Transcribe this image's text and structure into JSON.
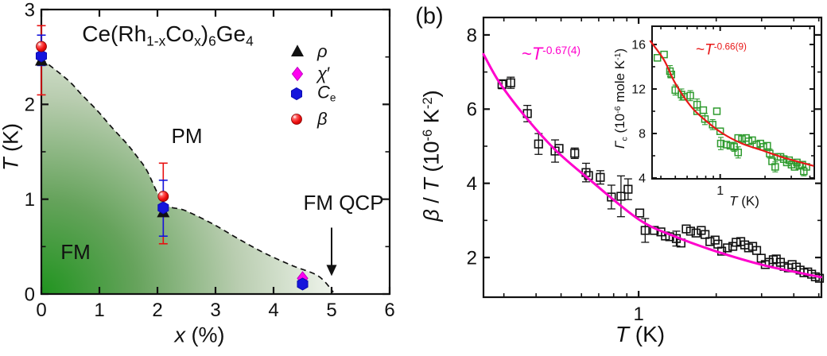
{
  "colors": {
    "black": "#111111",
    "blue": "#1515DC",
    "blue_edge": "#0B0BB0",
    "red": "#E81010",
    "magenta": "#FF00F0",
    "magenta_edge": "#C000C0",
    "fit_magenta": "#FF00CC",
    "fit_red": "#E81818",
    "green": "#2E9B2E",
    "green_corner": "#20941F"
  },
  "left_panel": {
    "title": [
      {
        "t": "Ce(Rh"
      },
      {
        "sub": "1-x"
      },
      {
        "t": "Co"
      },
      {
        "sub": "x"
      },
      {
        "t": ")"
      },
      {
        "sub": "6"
      },
      {
        "t": "Ge"
      },
      {
        "sub": "4"
      }
    ],
    "xlabel": [
      {
        "t": "x",
        "i": true
      },
      {
        "t": " (%)"
      }
    ],
    "ylabel": [
      {
        "t": "T",
        "i": true
      },
      {
        "t": " (K)"
      }
    ],
    "region_fm": "FM",
    "region_pm": "PM",
    "qcp_label": "FM QCP",
    "legend": [
      {
        "marker": "triangle",
        "label": [
          {
            "t": "ρ",
            "i": true
          }
        ]
      },
      {
        "marker": "diamond",
        "label": [
          {
            "t": "χ",
            "i": true
          },
          {
            "t": "′"
          }
        ]
      },
      {
        "marker": "hexagon",
        "label": [
          {
            "t": "C",
            "i": true
          },
          {
            "sub": "e"
          }
        ]
      },
      {
        "marker": "ball",
        "label": [
          {
            "t": "β",
            "i": true
          }
        ]
      }
    ]
  },
  "right_panel": {
    "panel_tag": "(b)",
    "xlabel": [
      {
        "t": "T",
        "i": true
      },
      {
        "t": " (K)"
      }
    ],
    "ylabel": [
      {
        "t": "β",
        "i": true
      },
      {
        "t": " / "
      },
      {
        "t": "T",
        "i": true
      },
      {
        "t": " (10"
      },
      {
        "sup": "-6"
      },
      {
        "t": " K"
      },
      {
        "sup": "-2"
      },
      {
        "t": ")"
      }
    ],
    "fit_label": [
      {
        "t": "~"
      },
      {
        "t": "T",
        "i": true
      },
      {
        "sup": "-0.67(4)"
      }
    ],
    "inset": {
      "xlabel": [
        {
          "t": "T",
          "i": true
        },
        {
          "t": " (K)"
        }
      ],
      "ylabel": [
        {
          "t": "Γ",
          "i": true
        },
        {
          "sub": "c"
        },
        {
          "t": " (10"
        },
        {
          "sup": "-6"
        },
        {
          "t": " mole K"
        },
        {
          "sup": "-1"
        },
        {
          "t": ")"
        }
      ],
      "fit_label": [
        {
          "t": "~"
        },
        {
          "t": "T",
          "i": true
        },
        {
          "sup": "-0.66(9)"
        }
      ]
    }
  },
  "chart_data": [
    {
      "type": "scatter",
      "name": "phase-diagram",
      "title": "Ce(Rh1-xCox)6Ge4",
      "xlabel": "x (%)",
      "ylabel": "T (K)",
      "xlim": [
        0,
        6
      ],
      "ylim": [
        0,
        3
      ],
      "xscale": "linear",
      "yscale": "linear",
      "ticks": {
        "x_major": [
          0,
          1,
          2,
          3,
          4,
          5,
          6
        ],
        "x_minor": [],
        "y_major": [
          0,
          1,
          2,
          3
        ],
        "y_minor": [
          0.5,
          1.5,
          2.5
        ]
      },
      "boundary_dashed": [
        [
          0,
          2.48
        ],
        [
          0.45,
          2.26
        ],
        [
          0.7,
          2.1
        ],
        [
          0.97,
          1.93
        ],
        [
          1.21,
          1.76
        ],
        [
          1.48,
          1.58
        ],
        [
          1.66,
          1.44
        ],
        [
          1.82,
          1.3
        ],
        [
          2.11,
          0.96
        ],
        [
          2.48,
          0.88
        ],
        [
          2.95,
          0.74
        ],
        [
          3.4,
          0.58
        ],
        [
          3.85,
          0.43
        ],
        [
          4.32,
          0.3
        ],
        [
          4.77,
          0.19
        ],
        [
          5.03,
          0.02
        ]
      ],
      "qcp_arrow": {
        "x": 5,
        "from_T": 0.7,
        "to_T": 0.19
      },
      "points_format": [
        "x_percent",
        "T_K",
        "err_low",
        "err_high"
      ],
      "series": [
        {
          "name": "rho",
          "marker": "triangle",
          "points": [
            [
              0,
              2.46,
              null,
              null
            ],
            [
              2.1,
              0.86,
              null,
              null
            ]
          ]
        },
        {
          "name": "Ce",
          "marker": "hexagon",
          "points": [
            [
              0,
              2.51,
              2.41,
              2.73
            ],
            [
              2.1,
              0.91,
              0.61,
              1.2
            ],
            [
              4.5,
              0.105,
              null,
              null
            ]
          ]
        },
        {
          "name": "chi",
          "marker": "diamond",
          "points": [
            [
              4.5,
              0.165,
              null,
              null
            ]
          ]
        },
        {
          "name": "beta",
          "marker": "ball",
          "points": [
            [
              0,
              2.61,
              2.1,
              2.83
            ],
            [
              2.1,
              1.03,
              0.53,
              1.38
            ]
          ]
        }
      ],
      "err_draw": [
        3,
        1
      ],
      "marker_draw": [
        0,
        2,
        1,
        3
      ]
    },
    {
      "type": "scatter",
      "name": "beta-over-T-vs-T",
      "xlabel": "T (K)",
      "ylabel": "beta/T (10^-6 K^-2)",
      "xscale": "log",
      "yscale": "linear",
      "xlim": [
        0.25,
        5.12
      ],
      "ylim": [
        0.93,
        8.47
      ],
      "ticks": {
        "x_major": [
          1
        ],
        "x_minor": [
          0.3,
          0.4,
          0.5,
          0.6,
          0.7,
          0.8,
          0.9,
          2,
          3,
          4,
          5
        ],
        "y_major": [
          2,
          4,
          6,
          8
        ],
        "y_minor": [
          3,
          5,
          7
        ]
      },
      "fit": "~T^-0.67(4)",
      "fit_curve": [
        [
          0.25,
          7.48
        ],
        [
          0.29,
          6.69
        ],
        [
          0.37,
          5.73
        ],
        [
          0.48,
          4.87
        ],
        [
          0.64,
          4.12
        ],
        [
          1.0,
          3.03
        ],
        [
          1.39,
          2.56
        ],
        [
          2.03,
          2.15
        ],
        [
          3.06,
          1.79
        ],
        [
          4.12,
          1.6
        ],
        [
          5.1,
          1.47
        ]
      ],
      "points_format": [
        "T_K",
        "beta_over_T",
        "err"
      ],
      "points": [
        [
          0.295,
          6.67,
          0.12
        ],
        [
          0.319,
          6.71,
          0.15
        ],
        [
          0.37,
          5.88,
          0.22
        ],
        [
          0.409,
          5.06,
          0.28
        ],
        [
          0.474,
          4.87,
          0.3
        ],
        [
          0.491,
          4.94,
          0
        ],
        [
          0.565,
          4.81,
          0.14
        ],
        [
          0.625,
          4.29,
          0.25
        ],
        [
          0.639,
          4.21,
          0
        ],
        [
          0.71,
          4.16,
          0.18
        ],
        [
          0.784,
          3.63,
          0.32
        ],
        [
          0.854,
          3.65,
          0.55
        ],
        [
          0.91,
          3.84,
          0.28
        ],
        [
          1.01,
          3.2,
          0
        ],
        [
          1.06,
          2.73,
          0.32
        ],
        [
          1.15,
          2.73,
          0
        ],
        [
          1.22,
          2.69,
          0
        ],
        [
          1.27,
          2.58,
          0
        ],
        [
          1.32,
          2.56,
          0
        ],
        [
          1.4,
          2.51,
          0.2
        ],
        [
          1.46,
          2.39,
          0
        ],
        [
          1.53,
          2.77,
          0
        ],
        [
          1.59,
          2.71,
          0
        ],
        [
          1.67,
          2.66,
          0
        ],
        [
          1.75,
          2.73,
          0
        ],
        [
          1.81,
          2.62,
          0
        ],
        [
          1.89,
          2.43,
          0
        ],
        [
          1.98,
          2.47,
          0
        ],
        [
          2.03,
          2.36,
          0
        ],
        [
          2.1,
          2.17,
          0
        ],
        [
          2.21,
          2.26,
          0
        ],
        [
          2.32,
          2.3,
          0
        ],
        [
          2.39,
          2.41,
          0
        ],
        [
          2.49,
          2.43,
          0
        ],
        [
          2.58,
          2.34,
          0
        ],
        [
          2.67,
          2.26,
          0
        ],
        [
          2.77,
          2.3,
          0
        ],
        [
          2.87,
          2.19,
          0
        ],
        [
          2.99,
          1.98,
          0
        ],
        [
          3.1,
          1.81,
          0
        ],
        [
          3.21,
          1.87,
          0
        ],
        [
          3.33,
          1.94,
          0
        ],
        [
          3.42,
          1.96,
          0
        ],
        [
          3.55,
          1.87,
          0
        ],
        [
          3.67,
          1.76,
          0
        ],
        [
          3.81,
          1.72,
          0
        ],
        [
          3.94,
          1.81,
          0
        ],
        [
          4.09,
          1.74,
          0
        ],
        [
          4.23,
          1.66,
          0
        ],
        [
          4.38,
          1.59,
          0
        ],
        [
          4.53,
          1.61,
          0
        ],
        [
          4.69,
          1.55,
          0
        ],
        [
          4.85,
          1.48,
          0
        ],
        [
          5.03,
          1.44,
          0
        ]
      ]
    },
    {
      "type": "scatter",
      "name": "gamma-c-inset",
      "xlabel": "T (K)",
      "ylabel": "Gamma_c (10^-6 mole K^-1)",
      "xscale": "log",
      "yscale": "linear",
      "xlim": [
        0.349,
        4.28
      ],
      "ylim": [
        3.93,
        17.64
      ],
      "ticks": {
        "x_major": [
          1
        ],
        "x_minor": [
          0.4,
          0.5,
          0.6,
          0.7,
          0.8,
          0.9,
          2,
          3,
          4
        ],
        "y_major": [
          4,
          8,
          12,
          16
        ],
        "y_minor": [
          6,
          10,
          14
        ]
      },
      "fit": "~T^-0.66(9)",
      "fit_curve": [
        [
          0.34,
          16.3
        ],
        [
          0.42,
          14.6
        ],
        [
          0.5,
          12.5
        ],
        [
          0.64,
          10.4
        ],
        [
          0.81,
          9.1
        ],
        [
          1.04,
          8.0
        ],
        [
          1.4,
          7.1
        ],
        [
          1.9,
          6.5
        ],
        [
          2.57,
          5.9
        ],
        [
          3.48,
          5.4
        ],
        [
          4.2,
          5.1
        ]
      ],
      "points_format": [
        "T_K",
        "gamma_c",
        "err"
      ],
      "points": [
        [
          0.379,
          14.8,
          0
        ],
        [
          0.42,
          15.1,
          0
        ],
        [
          0.46,
          13.6,
          0.5
        ],
        [
          0.47,
          13.3,
          0
        ],
        [
          0.5,
          11.9,
          0.45
        ],
        [
          0.55,
          11.5,
          0.5
        ],
        [
          0.57,
          11.3,
          0
        ],
        [
          0.63,
          11.4,
          0.45
        ],
        [
          0.7,
          10.6,
          0.5
        ],
        [
          0.7,
          10.0,
          0
        ],
        [
          0.77,
          10.1,
          0
        ],
        [
          0.79,
          9.3,
          0.5
        ],
        [
          0.89,
          8.8,
          0.45
        ],
        [
          0.95,
          10.0,
          0
        ],
        [
          1.0,
          8.2,
          0
        ],
        [
          1.01,
          7.1,
          0.55
        ],
        [
          1.1,
          7.0,
          0
        ],
        [
          1.17,
          6.9,
          0
        ],
        [
          1.24,
          6.8,
          0.4
        ],
        [
          1.32,
          7.6,
          0
        ],
        [
          1.4,
          7.5,
          0
        ],
        [
          1.49,
          7.6,
          0
        ],
        [
          1.55,
          7.3,
          0
        ],
        [
          1.32,
          6.3,
          0.5
        ],
        [
          1.64,
          7.4,
          0
        ],
        [
          1.75,
          7.0,
          0
        ],
        [
          1.86,
          7.1,
          0
        ],
        [
          1.95,
          6.8,
          0
        ],
        [
          2.07,
          6.9,
          0
        ],
        [
          2.15,
          6.2,
          0.4
        ],
        [
          2.23,
          5.5,
          0
        ],
        [
          2.34,
          5.0,
          0.45
        ],
        [
          2.42,
          5.9,
          0
        ],
        [
          2.54,
          5.9,
          0
        ],
        [
          2.67,
          5.7,
          0
        ],
        [
          2.8,
          5.4,
          0
        ],
        [
          2.9,
          5.6,
          0
        ],
        [
          3.01,
          5.2,
          0
        ],
        [
          3.16,
          5.0,
          0
        ],
        [
          3.27,
          5.4,
          0
        ],
        [
          3.4,
          5.1,
          0
        ],
        [
          3.56,
          5.2,
          0
        ],
        [
          3.64,
          4.6,
          0.4
        ],
        [
          3.79,
          5.0,
          0
        ]
      ]
    }
  ]
}
